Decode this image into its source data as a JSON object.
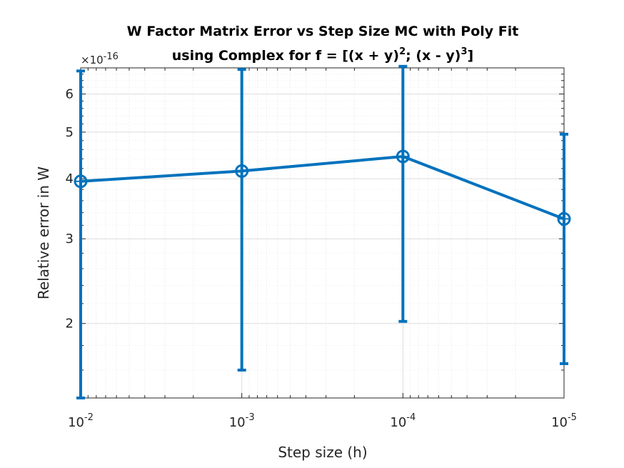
{
  "chart_data": {
    "type": "line",
    "title_line1": "W Factor Matrix Error vs Step Size MC with Poly Fit",
    "title_line2_prefix": "using Complex for f = [(x + y)",
    "title_sup1": "2",
    "title_line2_mid": "; (x - y)",
    "title_sup2": "3",
    "title_line2_suffix": "]",
    "xlabel": "Step size (h)",
    "ylabel": "Relative error in W",
    "y_multiplier_base": "×10",
    "y_multiplier_exp": "-16",
    "x_scale": "log",
    "y_scale": "log",
    "x_reversed": true,
    "xlim": [
      1e-05,
      0.01
    ],
    "ylim": [
      1.4e-16,
      6.8e-16
    ],
    "grid": true,
    "minor_grid": true,
    "x_ticks": [
      {
        "value": 0.01,
        "base": "10",
        "exp": "-2"
      },
      {
        "value": 0.001,
        "base": "10",
        "exp": "-3"
      },
      {
        "value": 0.0001,
        "base": "10",
        "exp": "-4"
      },
      {
        "value": 1e-05,
        "base": "10",
        "exp": "-5"
      }
    ],
    "y_ticks": [
      {
        "value": 2e-16,
        "label": "2"
      },
      {
        "value": 3e-16,
        "label": "3"
      },
      {
        "value": 4e-16,
        "label": "4"
      },
      {
        "value": 5e-16,
        "label": "5"
      },
      {
        "value": 6e-16,
        "label": "6"
      }
    ],
    "series": [
      {
        "color": "#0072BD",
        "marker": "circle-plus",
        "x": [
          0.01,
          0.001,
          0.0001,
          1e-05
        ],
        "y": [
          3.95e-16,
          4.15e-16,
          4.45e-16,
          3.3e-16
        ],
        "err_low": [
          1.4e-16,
          1.6e-16,
          2.02e-16,
          1.65e-16
        ],
        "err_high": [
          6.7e-16,
          6.75e-16,
          6.85e-16,
          4.95e-16
        ]
      }
    ]
  }
}
